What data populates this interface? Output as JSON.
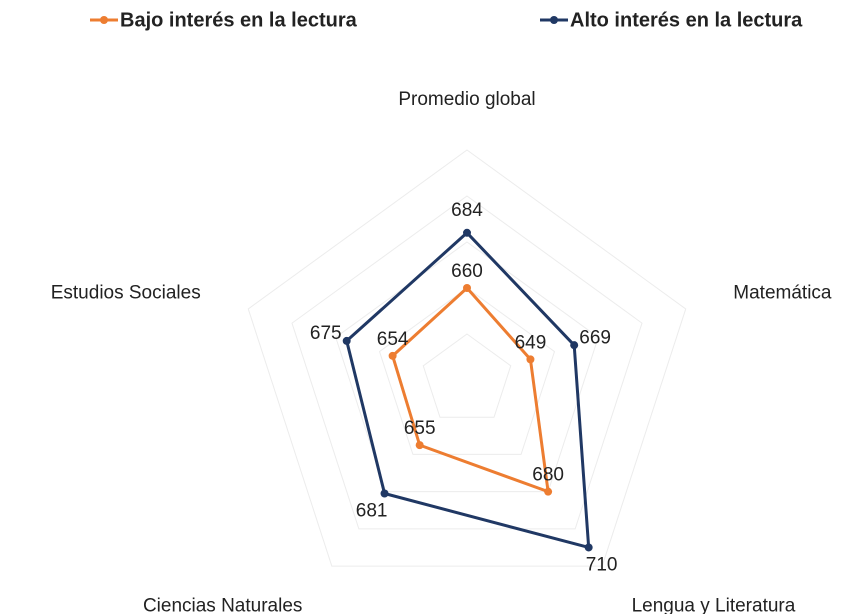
{
  "chart_data": {
    "type": "radar",
    "categories": [
      "Promedio global",
      "Matemática",
      "Lengua y Literatura",
      "Ciencias Naturales",
      "Estudios Sociales"
    ],
    "series": [
      {
        "name": "Bajo interés en la lectura",
        "color": "#ed7d31",
        "values": [
          660,
          649,
          680,
          655,
          654
        ]
      },
      {
        "name": "Alto interés en la lectura",
        "color": "#203864",
        "values": [
          684,
          669,
          710,
          681,
          675
        ]
      }
    ],
    "ylim": [
      620,
      720
    ],
    "yticks": [
      620,
      640,
      660,
      680,
      700,
      720
    ],
    "grid": true,
    "legend": "top"
  }
}
